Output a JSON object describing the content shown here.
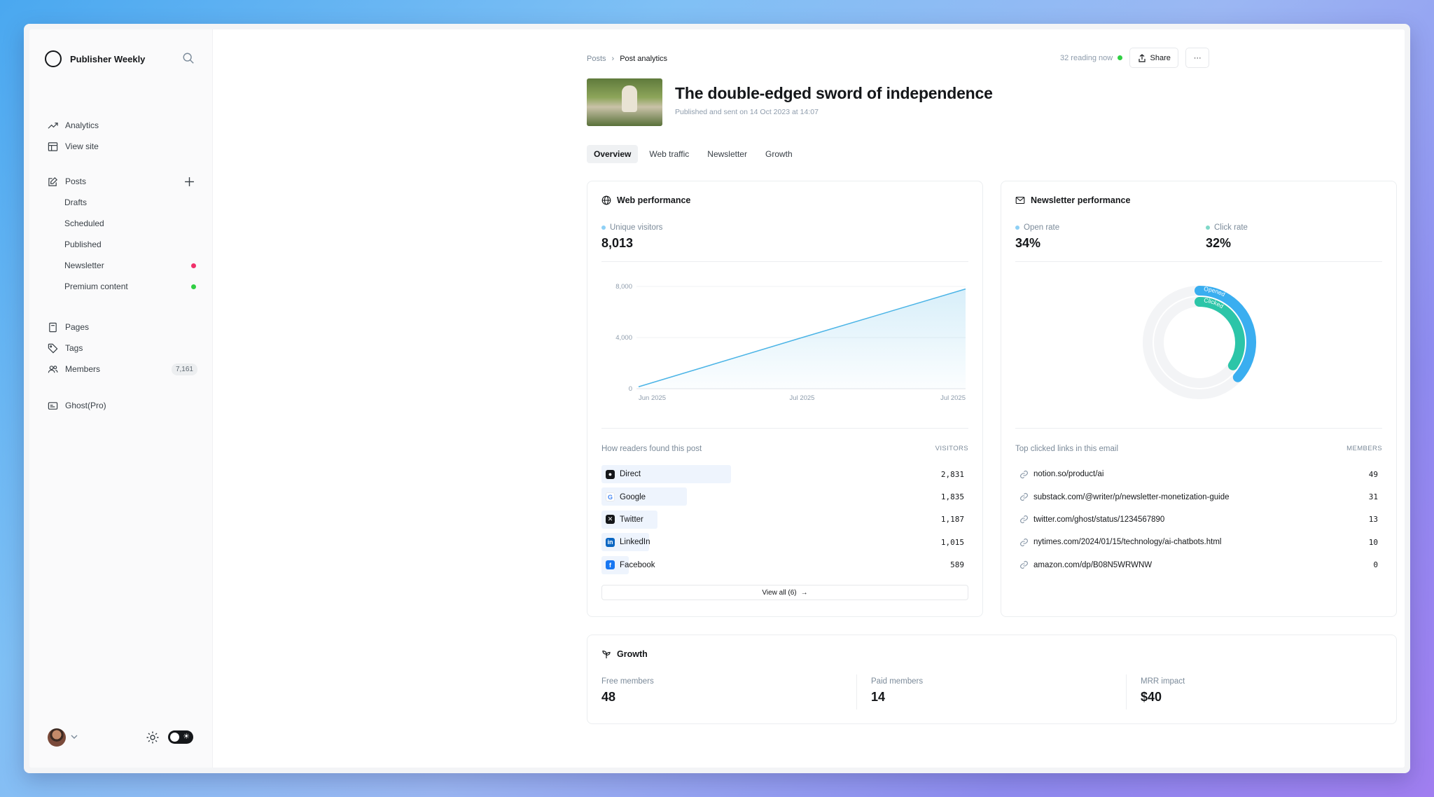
{
  "sidebar": {
    "brand": "Publisher Weekly",
    "items_top": [
      {
        "label": "Analytics",
        "icon": "trend-icon"
      },
      {
        "label": "View site",
        "icon": "site-icon"
      }
    ],
    "posts_label": "Posts",
    "post_subitems": [
      "Drafts",
      "Scheduled",
      "Published",
      "Newsletter",
      "Premium content"
    ],
    "newsletter_dot_color": "#f0306a",
    "premium_dot_color": "#30cf43",
    "items_bottom": [
      {
        "label": "Pages"
      },
      {
        "label": "Tags"
      },
      {
        "label": "Members",
        "count": "7,161"
      }
    ],
    "ghost_pro": "Ghost(Pro)"
  },
  "header": {
    "breadcrumb_parent": "Posts",
    "breadcrumb_current": "Post analytics",
    "reading_now": "32 reading now",
    "share_label": "Share",
    "more_label": "···",
    "title": "The double-edged sword of independence",
    "subtitle": "Published and sent on 14 Oct 2023 at 14:07"
  },
  "tabs": [
    "Overview",
    "Web traffic",
    "Newsletter",
    "Growth"
  ],
  "web": {
    "title": "Web performance",
    "metric_label": "Unique visitors",
    "metric_value": "8,013",
    "y_ticks": [
      "8,000",
      "4,000",
      "0"
    ],
    "x_ticks": [
      "Jun 2025",
      "Jul 2025",
      "Jul 2025"
    ],
    "sources_head": "How readers found this post",
    "sources_col": "VISITORS",
    "sources": [
      {
        "label": "Direct",
        "value": "2,831",
        "share": 1.0
      },
      {
        "label": "Google",
        "value": "1,835",
        "share": 0.66
      },
      {
        "label": "Twitter",
        "value": "1,187",
        "share": 0.43
      },
      {
        "label": "LinkedIn",
        "value": "1,015",
        "share": 0.37
      },
      {
        "label": "Facebook",
        "value": "589",
        "share": 0.21
      }
    ],
    "view_all": "View all (6)"
  },
  "chart_data": {
    "type": "area",
    "x": [
      "Jun 2025",
      "Jul 2025",
      "Jul 2025"
    ],
    "series": [
      {
        "values": [
          150,
          4000,
          7800
        ]
      }
    ],
    "ylim": [
      0,
      8000
    ],
    "grid": true,
    "color": "#4bb4e6"
  },
  "newsletter": {
    "title": "Newsletter performance",
    "open_label": "Open rate",
    "open_value": "34%",
    "click_label": "Click rate",
    "click_value": "32%",
    "ring_labels": [
      "Opened",
      "Clicked"
    ],
    "open_fraction": 0.34,
    "click_fraction": 0.32,
    "links_head": "Top clicked links in this email",
    "links_col": "MEMBERS",
    "links": [
      {
        "url": "notion.so/product/ai",
        "value": "49"
      },
      {
        "url": "substack.com/@writer/p/newsletter-monetization-guide",
        "value": "31"
      },
      {
        "url": "twitter.com/ghost/status/1234567890",
        "value": "13"
      },
      {
        "url": "nytimes.com/2024/01/15/technology/ai-chatbots.html",
        "value": "10"
      },
      {
        "url": "amazon.com/dp/B08N5WRWNW",
        "value": "0"
      }
    ]
  },
  "growth": {
    "title": "Growth",
    "free_label": "Free members",
    "free_value": "48",
    "paid_label": "Paid members",
    "paid_value": "14",
    "mrr_label": "MRR impact",
    "mrr_value": "$40"
  }
}
